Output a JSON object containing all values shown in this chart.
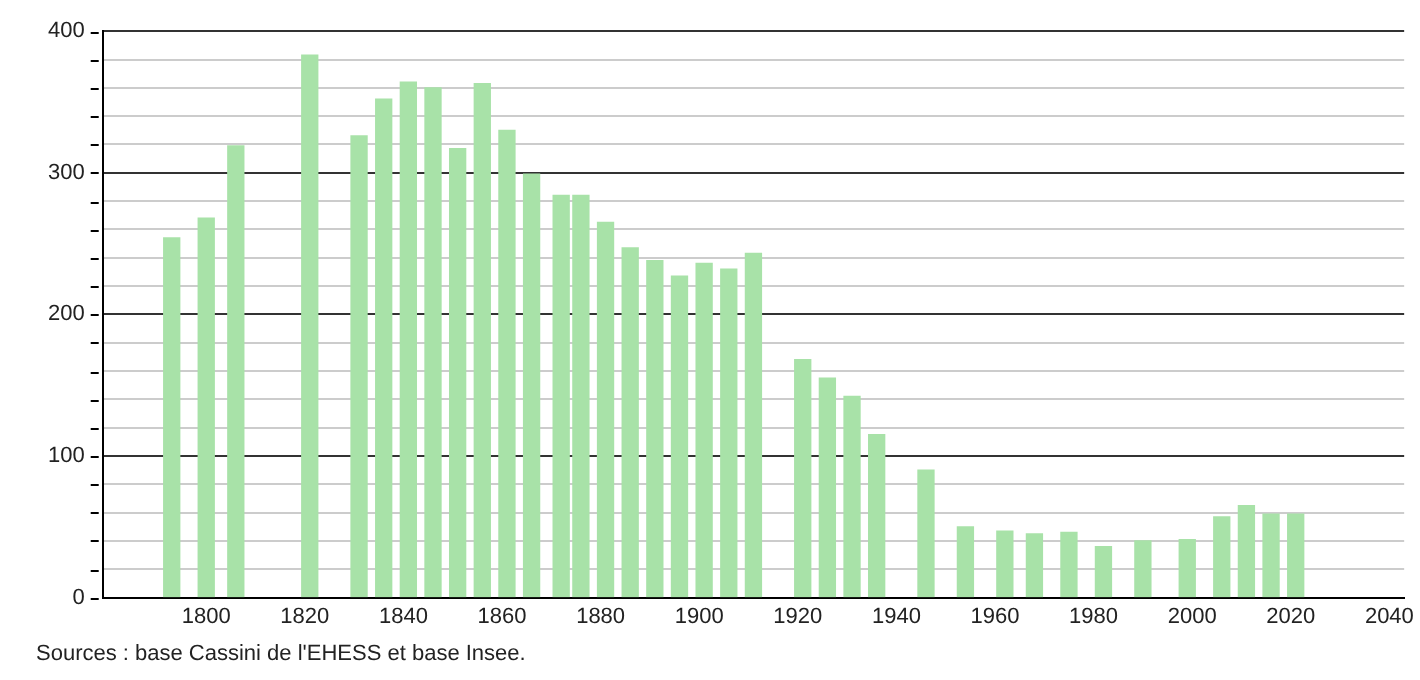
{
  "chart_data": {
    "type": "bar",
    "color": "#a8e2a8",
    "x": [
      1793,
      1800,
      1806,
      1821,
      1831,
      1836,
      1841,
      1846,
      1851,
      1856,
      1861,
      1866,
      1872,
      1876,
      1881,
      1886,
      1891,
      1896,
      1901,
      1906,
      1911,
      1921,
      1926,
      1931,
      1936,
      1946,
      1954,
      1962,
      1968,
      1975,
      1982,
      1990,
      1999,
      2006,
      2011,
      2016,
      2021
    ],
    "values": [
      254,
      268,
      319,
      383,
      326,
      352,
      364,
      360,
      317,
      363,
      330,
      299,
      284,
      284,
      265,
      247,
      238,
      227,
      236,
      232,
      243,
      168,
      155,
      142,
      115,
      90,
      50,
      47,
      45,
      46,
      36,
      40,
      41,
      57,
      65,
      59,
      59
    ],
    "xlim": [
      1779,
      2043
    ],
    "xticks": [
      1800,
      1820,
      1840,
      1860,
      1880,
      1900,
      1920,
      1940,
      1960,
      1980,
      2000,
      2020,
      2040
    ],
    "ylim": [
      0,
      400
    ],
    "yticks": [
      0,
      {
        "value": 20,
        "label": null
      },
      {
        "value": 40,
        "label": null
      },
      {
        "value": 60,
        "label": null
      },
      {
        "value": 80,
        "label": null
      },
      100,
      {
        "value": 120,
        "label": null
      },
      {
        "value": 140,
        "label": null
      },
      {
        "value": 160,
        "label": null
      },
      {
        "value": 180,
        "label": null
      },
      200,
      {
        "value": 220,
        "label": null
      },
      {
        "value": 240,
        "label": null
      },
      {
        "value": 260,
        "label": null
      },
      {
        "value": 280,
        "label": null
      },
      300,
      {
        "value": 320,
        "label": null
      },
      {
        "value": 340,
        "label": null
      },
      {
        "value": 360,
        "label": null
      },
      {
        "value": 380,
        "label": null
      },
      400
    ],
    "grid": "y",
    "legend": false,
    "annotations": [
      "Sources : base Cassini de l'EHESS et base Insee."
    ]
  }
}
